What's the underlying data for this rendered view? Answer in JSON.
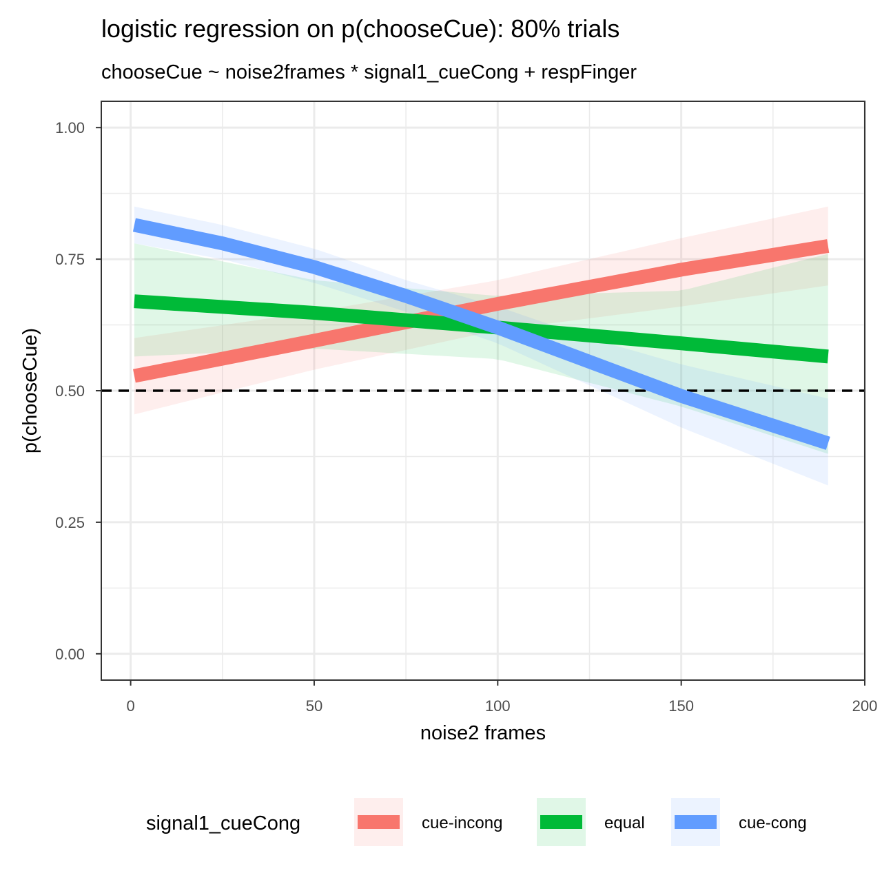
{
  "chart_data": {
    "type": "line",
    "title": "logistic regression on p(chooseCue): 80% trials",
    "subtitle": "chooseCue ~ noise2frames * signal1_cueCong + respFinger",
    "xlabel": "noise2 frames",
    "ylabel": "p(chooseCue)",
    "xlim": [
      -8,
      200
    ],
    "ylim": [
      -0.05,
      1.05
    ],
    "x_ticks": [
      0,
      50,
      100,
      150,
      200
    ],
    "y_ticks": [
      0.0,
      0.25,
      0.5,
      0.75,
      1.0
    ],
    "x_tick_labels": [
      "0",
      "50",
      "100",
      "150",
      "200"
    ],
    "y_tick_labels": [
      "0.00",
      "0.25",
      "0.50",
      "0.75",
      "1.00"
    ],
    "grid": true,
    "reference_line": {
      "y": 0.5,
      "style": "dashed",
      "color": "#000000"
    },
    "legend": {
      "title": "signal1_cueCong",
      "position": "bottom"
    },
    "series": [
      {
        "name": "cue-incong",
        "color": "#F8766D",
        "x": [
          1,
          50,
          100,
          150,
          190
        ],
        "y": [
          0.528,
          0.595,
          0.665,
          0.73,
          0.775
        ],
        "lower": [
          0.455,
          0.54,
          0.615,
          0.66,
          0.7
        ],
        "upper": [
          0.6,
          0.65,
          0.71,
          0.79,
          0.85
        ]
      },
      {
        "name": "equal",
        "color": "#00BA38",
        "x": [
          1,
          50,
          100,
          150,
          190
        ],
        "y": [
          0.67,
          0.648,
          0.62,
          0.59,
          0.565
        ],
        "lower": [
          0.565,
          0.58,
          0.56,
          0.47,
          0.38
        ],
        "upper": [
          0.78,
          0.71,
          0.68,
          0.69,
          0.76
        ]
      },
      {
        "name": "cue-cong",
        "color": "#619CFF",
        "x": [
          1,
          25,
          50,
          75,
          100,
          125,
          150,
          190
        ],
        "y": [
          0.815,
          0.78,
          0.735,
          0.68,
          0.62,
          0.555,
          0.49,
          0.4
        ],
        "lower": [
          0.78,
          0.75,
          0.705,
          0.65,
          0.59,
          0.51,
          0.43,
          0.32
        ],
        "upper": [
          0.85,
          0.815,
          0.77,
          0.71,
          0.66,
          0.6,
          0.55,
          0.485
        ]
      }
    ]
  }
}
